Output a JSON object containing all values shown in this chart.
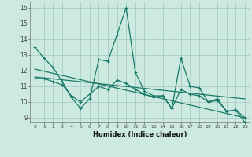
{
  "xlabel": "Humidex (Indice chaleur)",
  "bg_color": "#cceae0",
  "line_color": "#1a7a6a",
  "grid_color": "#b8ddd4",
  "xlim": [
    -0.5,
    23.5
  ],
  "ylim": [
    8.7,
    16.4
  ],
  "xticks": [
    0,
    1,
    2,
    3,
    4,
    5,
    6,
    7,
    8,
    9,
    10,
    11,
    12,
    13,
    14,
    15,
    16,
    17,
    18,
    19,
    20,
    21,
    22,
    23
  ],
  "yticks": [
    9,
    10,
    11,
    12,
    13,
    14,
    15,
    16
  ],
  "series1_x": [
    0,
    1,
    2,
    3,
    4,
    5,
    6,
    7,
    8,
    9,
    10,
    11,
    12,
    13,
    14,
    15,
    16,
    17,
    18,
    19,
    20,
    21,
    22,
    23
  ],
  "series1_y": [
    13.5,
    12.8,
    12.2,
    11.3,
    10.3,
    9.6,
    10.2,
    12.7,
    12.6,
    14.3,
    16.0,
    11.9,
    10.7,
    10.4,
    10.4,
    9.6,
    12.8,
    11.0,
    10.9,
    10.0,
    10.2,
    9.4,
    9.5,
    8.7
  ],
  "series2_x": [
    0,
    1,
    2,
    3,
    4,
    5,
    6,
    7,
    8,
    9,
    10,
    11,
    12,
    13,
    14,
    15,
    16,
    17,
    18,
    19,
    20,
    21,
    22,
    23
  ],
  "series2_y": [
    11.5,
    11.5,
    11.3,
    11.1,
    10.4,
    10.0,
    10.5,
    11.0,
    10.8,
    11.4,
    11.2,
    10.8,
    10.5,
    10.3,
    10.4,
    9.6,
    10.8,
    10.5,
    10.4,
    10.0,
    10.1,
    9.4,
    9.5,
    9.0
  ],
  "series3_x": [
    0,
    23
  ],
  "series3_y": [
    12.1,
    9.0
  ],
  "series4_x": [
    0,
    23
  ],
  "series4_y": [
    11.6,
    10.2
  ]
}
